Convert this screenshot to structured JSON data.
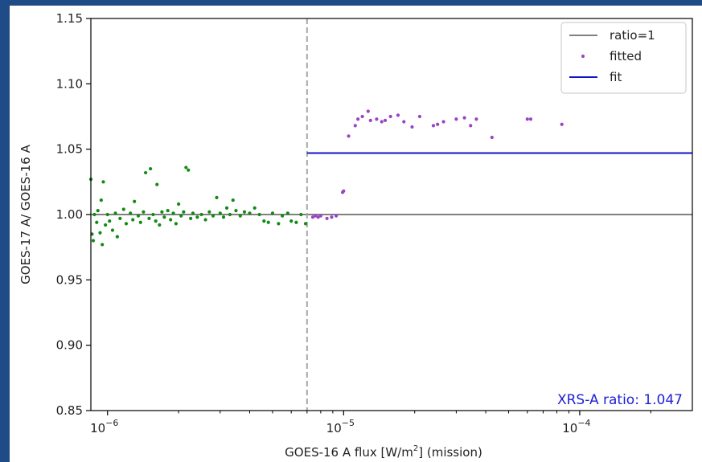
{
  "chart_data": {
    "type": "scatter",
    "xscale": "log",
    "xlim": [
      8.5e-07,
      0.0003
    ],
    "ylim": [
      0.85,
      1.15
    ],
    "x_ticks": [
      {
        "value": 1e-06,
        "base": "10",
        "exp": "−6"
      },
      {
        "value": 1e-05,
        "base": "10",
        "exp": "−5"
      },
      {
        "value": 0.0001,
        "base": "10",
        "exp": "−4"
      }
    ],
    "y_ticks": [
      "0.85",
      "0.90",
      "0.95",
      "1.00",
      "1.05",
      "1.10",
      "1.15"
    ],
    "xlabel_pre": "GOES-16 A flux [W/m",
    "xlabel_sup": "2",
    "xlabel_post": "] (mission)",
    "ylabel": "GOES-17 A/ GOES-16 A",
    "threshold_x": 7e-06,
    "ratio_line_y": 1.0,
    "fit": {
      "value": 1.047,
      "x_start": 7e-06,
      "x_end": 0.0003
    },
    "annotation": "XRS-A ratio: 1.047",
    "legend": {
      "position": "top-right",
      "entries": [
        {
          "label": "ratio=1",
          "style": "line",
          "color": "#808080"
        },
        {
          "label": "fitted",
          "style": "dot",
          "color": "#9b44c4"
        },
        {
          "label": "fit",
          "style": "line",
          "color": "#1212c8"
        }
      ]
    },
    "colors": {
      "below_threshold": "#138a13",
      "fitted": "#9b44c4",
      "fit": "#1212c8",
      "ratio": "#808080",
      "threshold": "#a9a9a9"
    },
    "series": [
      {
        "name": "fitted",
        "points": [
          [
            7.4e-06,
            0.998
          ],
          [
            7.6e-06,
            0.999
          ],
          [
            7.8e-06,
            0.998
          ],
          [
            8e-06,
            0.999
          ],
          [
            8.5e-06,
            0.997
          ],
          [
            8.9e-06,
            0.998
          ],
          [
            9.3e-06,
            0.999
          ],
          [
            9.9e-06,
            1.017
          ],
          [
            1e-05,
            1.018
          ],
          [
            1.05e-05,
            1.06
          ],
          [
            1.12e-05,
            1.068
          ],
          [
            1.15e-05,
            1.073
          ],
          [
            1.2e-05,
            1.075
          ],
          [
            1.27e-05,
            1.079
          ],
          [
            1.3e-05,
            1.072
          ],
          [
            1.38e-05,
            1.073
          ],
          [
            1.45e-05,
            1.071
          ],
          [
            1.5e-05,
            1.072
          ],
          [
            1.58e-05,
            1.075
          ],
          [
            1.7e-05,
            1.076
          ],
          [
            1.8e-05,
            1.071
          ],
          [
            1.95e-05,
            1.067
          ],
          [
            2.1e-05,
            1.075
          ],
          [
            2.4e-05,
            1.068
          ],
          [
            2.5e-05,
            1.069
          ],
          [
            2.65e-05,
            1.071
          ],
          [
            3e-05,
            1.073
          ],
          [
            3.25e-05,
            1.074
          ],
          [
            3.45e-05,
            1.068
          ],
          [
            3.65e-05,
            1.073
          ],
          [
            4.25e-05,
            1.059
          ],
          [
            6e-05,
            1.073
          ],
          [
            6.2e-05,
            1.073
          ],
          [
            8.4e-05,
            1.069
          ]
        ]
      },
      {
        "name": "",
        "points": [
          [
            8.5e-07,
            1.027
          ],
          [
            8.6e-07,
            0.985
          ],
          [
            8.7e-07,
            0.98
          ],
          [
            8.8e-07,
            1.0
          ],
          [
            9e-07,
            0.994
          ],
          [
            9.1e-07,
            1.003
          ],
          [
            9.3e-07,
            0.986
          ],
          [
            9.4e-07,
            1.011
          ],
          [
            9.5e-07,
            0.977
          ],
          [
            9.6e-07,
            1.025
          ],
          [
            9.8e-07,
            0.992
          ],
          [
            1e-06,
            1.0
          ],
          [
            1.02e-06,
            0.995
          ],
          [
            1.05e-06,
            0.988
          ],
          [
            1.08e-06,
            1.001
          ],
          [
            1.1e-06,
            0.983
          ],
          [
            1.13e-06,
            0.997
          ],
          [
            1.17e-06,
            1.004
          ],
          [
            1.2e-06,
            0.993
          ],
          [
            1.25e-06,
            1.001
          ],
          [
            1.28e-06,
            0.996
          ],
          [
            1.3e-06,
            1.01
          ],
          [
            1.35e-06,
            0.999
          ],
          [
            1.38e-06,
            0.994
          ],
          [
            1.42e-06,
            1.002
          ],
          [
            1.45e-06,
            1.032
          ],
          [
            1.5e-06,
            0.997
          ],
          [
            1.52e-06,
            1.035
          ],
          [
            1.56e-06,
            1.0
          ],
          [
            1.6e-06,
            0.995
          ],
          [
            1.62e-06,
            1.023
          ],
          [
            1.66e-06,
            0.992
          ],
          [
            1.7e-06,
            1.002
          ],
          [
            1.74e-06,
            0.998
          ],
          [
            1.8e-06,
            1.003
          ],
          [
            1.85e-06,
            0.996
          ],
          [
            1.9e-06,
            1.001
          ],
          [
            1.95e-06,
            0.993
          ],
          [
            2e-06,
            1.008
          ],
          [
            2.05e-06,
            0.999
          ],
          [
            2.1e-06,
            1.002
          ],
          [
            2.15e-06,
            1.036
          ],
          [
            2.2e-06,
            1.034
          ],
          [
            2.25e-06,
            0.997
          ],
          [
            2.3e-06,
            1.001
          ],
          [
            2.4e-06,
            0.998
          ],
          [
            2.5e-06,
            1.0
          ],
          [
            2.6e-06,
            0.996
          ],
          [
            2.7e-06,
            1.002
          ],
          [
            2.8e-06,
            0.999
          ],
          [
            2.9e-06,
            1.013
          ],
          [
            3e-06,
            1.001
          ],
          [
            3.1e-06,
            0.998
          ],
          [
            3.2e-06,
            1.005
          ],
          [
            3.3e-06,
            1.0
          ],
          [
            3.4e-06,
            1.011
          ],
          [
            3.5e-06,
            1.003
          ],
          [
            3.65e-06,
            0.999
          ],
          [
            3.8e-06,
            1.002
          ],
          [
            4e-06,
            1.001
          ],
          [
            4.2e-06,
            1.005
          ],
          [
            4.4e-06,
            1.0
          ],
          [
            4.6e-06,
            0.995
          ],
          [
            4.8e-06,
            0.994
          ],
          [
            5e-06,
            1.001
          ],
          [
            5.3e-06,
            0.993
          ],
          [
            5.5e-06,
            0.999
          ],
          [
            5.8e-06,
            1.001
          ],
          [
            6e-06,
            0.995
          ],
          [
            6.3e-06,
            0.994
          ],
          [
            6.6e-06,
            1.0
          ],
          [
            6.9e-06,
            0.993
          ]
        ]
      }
    ]
  }
}
